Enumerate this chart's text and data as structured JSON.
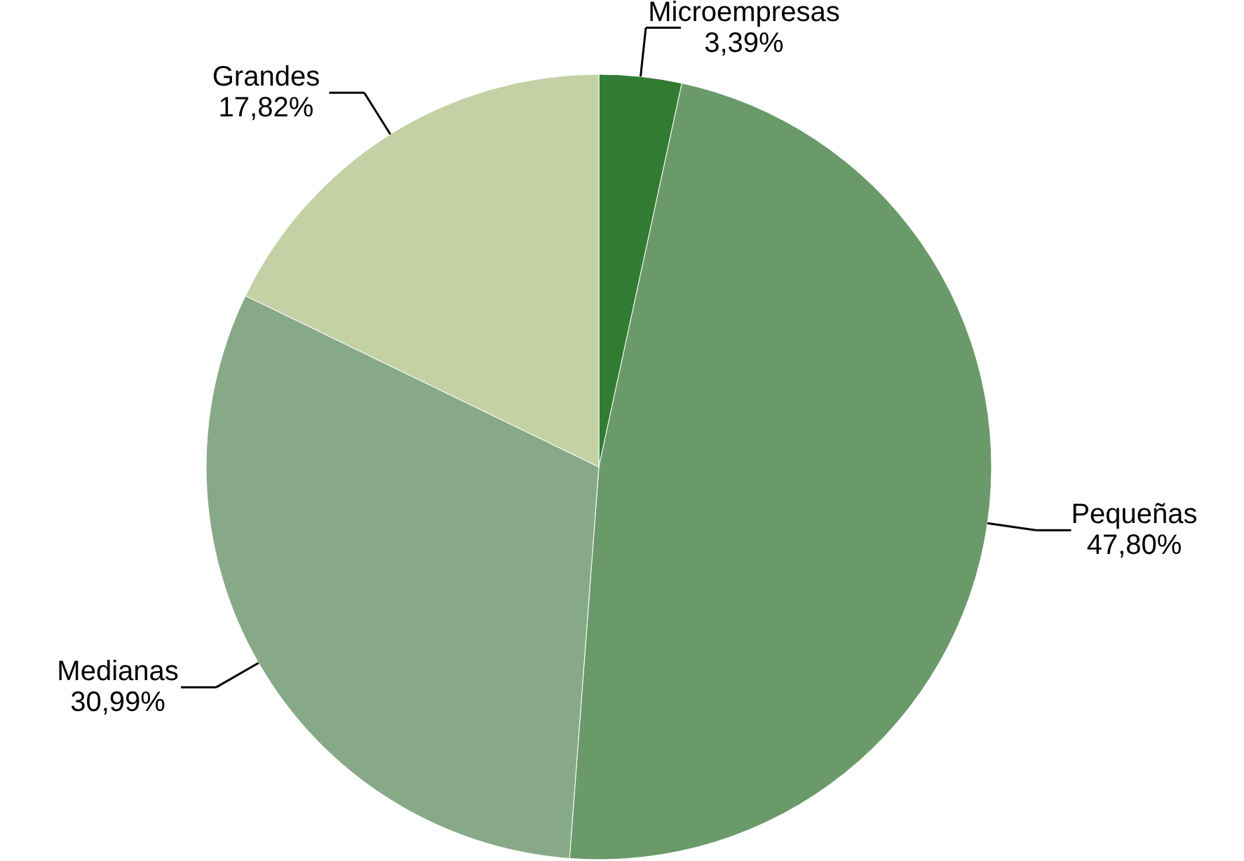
{
  "chart_data": {
    "type": "pie",
    "categories": [
      "Microempresas",
      "Pequeñas",
      "Medianas",
      "Grandes"
    ],
    "values": [
      3.39,
      47.8,
      30.99,
      17.82
    ],
    "value_labels": [
      "3,39%",
      "47,80%",
      "30,99%",
      "17,82%"
    ],
    "colors": [
      "#317c32",
      "#6a9a6a",
      "#88a988",
      "#c4d1a4"
    ]
  }
}
